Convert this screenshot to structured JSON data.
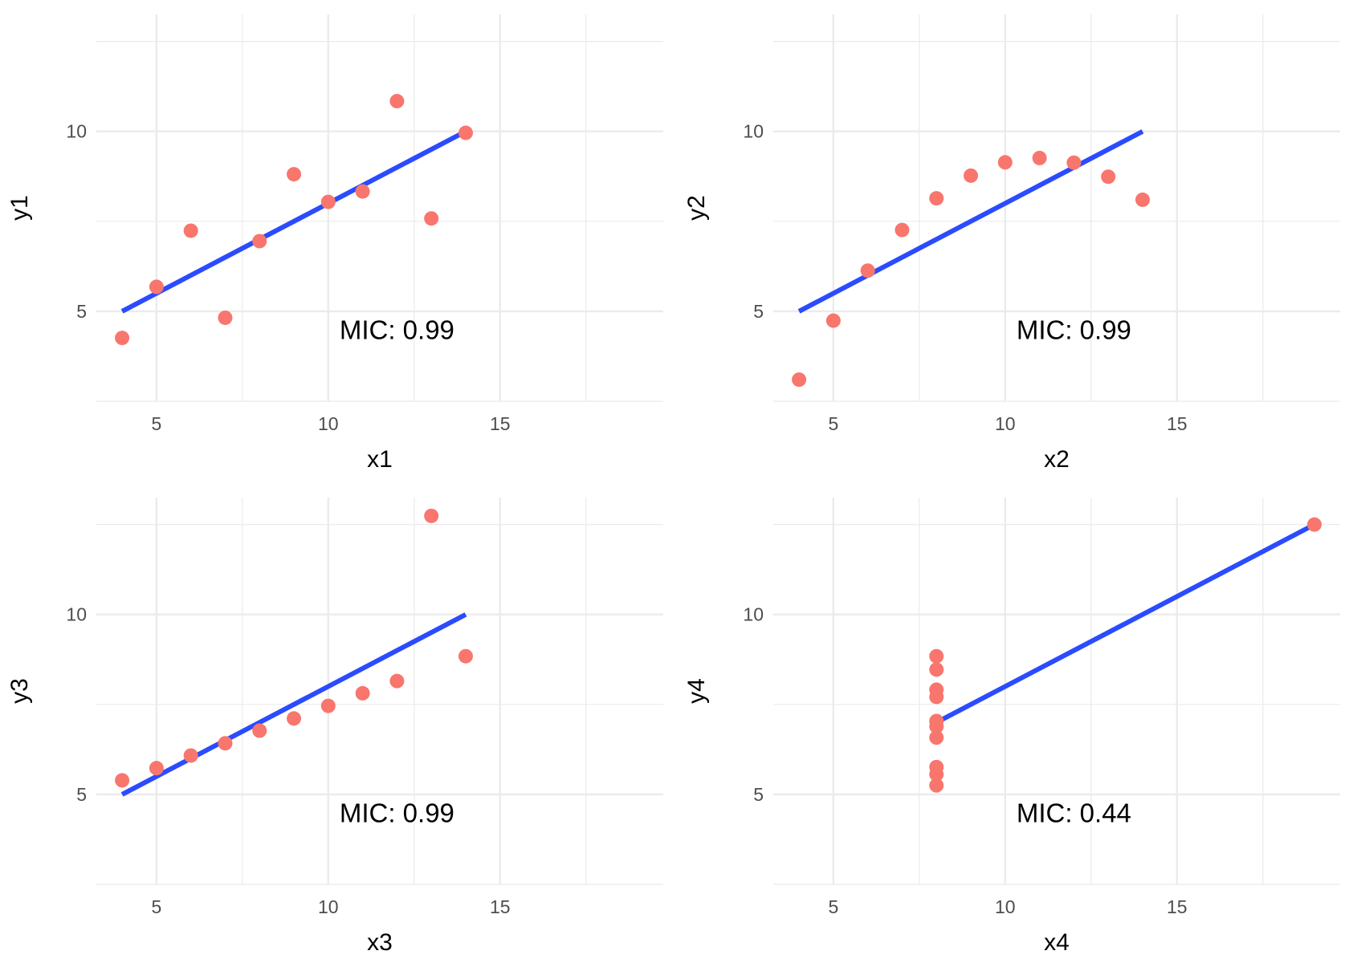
{
  "colors": {
    "point": "#f8766d",
    "line": "#2b4bff",
    "grid": "#ebebeb",
    "tick": "#4d4d4d"
  },
  "chart_data": [
    {
      "type": "scatter",
      "xlabel": "x1",
      "ylabel": "y1",
      "xlim": [
        3.25,
        19.75
      ],
      "ylim": [
        2.5,
        13.25
      ],
      "xticks": [
        5,
        10,
        15
      ],
      "yticks": [
        5,
        10
      ],
      "points": [
        [
          10,
          8.04
        ],
        [
          8,
          6.95
        ],
        [
          13,
          7.58
        ],
        [
          9,
          8.81
        ],
        [
          11,
          8.33
        ],
        [
          14,
          9.96
        ],
        [
          6,
          7.24
        ],
        [
          4,
          4.26
        ],
        [
          12,
          10.84
        ],
        [
          7,
          4.82
        ],
        [
          5,
          5.68
        ]
      ],
      "fit": [
        [
          4,
          5.0
        ],
        [
          14,
          10.0
        ]
      ],
      "annotation": "MIC: 0.99",
      "annotation_pos": [
        12,
        4.5
      ],
      "grid": true
    },
    {
      "type": "scatter",
      "xlabel": "x2",
      "ylabel": "y2",
      "xlim": [
        3.25,
        19.75
      ],
      "ylim": [
        2.5,
        13.25
      ],
      "xticks": [
        5,
        10,
        15
      ],
      "yticks": [
        5,
        10
      ],
      "points": [
        [
          10,
          9.14
        ],
        [
          8,
          8.14
        ],
        [
          13,
          8.74
        ],
        [
          9,
          8.77
        ],
        [
          11,
          9.26
        ],
        [
          14,
          8.1
        ],
        [
          6,
          6.13
        ],
        [
          4,
          3.1
        ],
        [
          12,
          9.13
        ],
        [
          7,
          7.26
        ],
        [
          5,
          4.74
        ]
      ],
      "fit": [
        [
          4,
          5.0
        ],
        [
          14,
          10.0
        ]
      ],
      "annotation": "MIC: 0.99",
      "annotation_pos": [
        12,
        4.5
      ],
      "grid": true
    },
    {
      "type": "scatter",
      "xlabel": "x3",
      "ylabel": "y3",
      "xlim": [
        3.25,
        19.75
      ],
      "ylim": [
        2.5,
        13.25
      ],
      "xticks": [
        5,
        10,
        15
      ],
      "yticks": [
        5,
        10
      ],
      "points": [
        [
          10,
          7.46
        ],
        [
          8,
          6.77
        ],
        [
          13,
          12.74
        ],
        [
          9,
          7.11
        ],
        [
          11,
          7.81
        ],
        [
          14,
          8.84
        ],
        [
          6,
          6.08
        ],
        [
          4,
          5.39
        ],
        [
          12,
          8.15
        ],
        [
          7,
          6.42
        ],
        [
          5,
          5.73
        ]
      ],
      "fit": [
        [
          4,
          5.0
        ],
        [
          14,
          10.0
        ]
      ],
      "annotation": "MIC: 0.99",
      "annotation_pos": [
        12,
        4.5
      ],
      "grid": true
    },
    {
      "type": "scatter",
      "xlabel": "x4",
      "ylabel": "y4",
      "xlim": [
        3.25,
        19.75
      ],
      "ylim": [
        2.5,
        13.25
      ],
      "xticks": [
        5,
        10,
        15
      ],
      "yticks": [
        5,
        10
      ],
      "points": [
        [
          8,
          6.58
        ],
        [
          8,
          5.76
        ],
        [
          8,
          7.71
        ],
        [
          8,
          8.84
        ],
        [
          8,
          8.47
        ],
        [
          8,
          7.04
        ],
        [
          8,
          5.25
        ],
        [
          19,
          12.5
        ],
        [
          8,
          5.56
        ],
        [
          8,
          7.91
        ],
        [
          8,
          6.89
        ]
      ],
      "fit": [
        [
          8,
          7.0
        ],
        [
          19,
          12.5
        ]
      ],
      "annotation": "MIC: 0.44",
      "annotation_pos": [
        12,
        4.5
      ],
      "grid": true
    }
  ]
}
